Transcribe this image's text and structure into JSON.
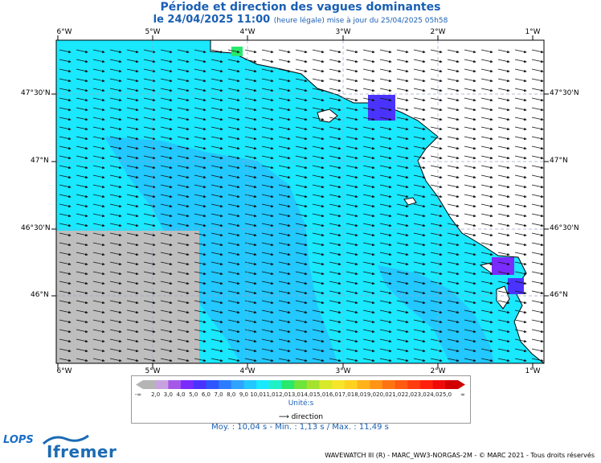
{
  "title": "Période et direction des vagues dominantes",
  "subtitle_date": "le 24/04/2025 11:00",
  "subtitle_note": "(heure légale) mise à jour du 25/04/2025 05h58",
  "lon_labels": [
    "6°W",
    "5°W",
    "4°W",
    "3°W",
    "2°W",
    "1°W"
  ],
  "lat_labels": [
    "47°30'N",
    "47°N",
    "46°30'N",
    "46°N"
  ],
  "legend": {
    "ticks": [
      "-∞",
      "2,0",
      "3,0",
      "4,0",
      "5,0",
      "6,0",
      "7,0",
      "8,0",
      "9,0",
      "10,0",
      "11,0",
      "12,0",
      "13,0",
      "14,0",
      "15,0",
      "16,0",
      "17,0",
      "18,0",
      "19,0",
      "20,0",
      "21,0",
      "22,0",
      "23,0",
      "24,0",
      "25,0",
      "∞"
    ],
    "colors": [
      "#b5b5b5",
      "#c8a2e0",
      "#a657e8",
      "#7a2bff",
      "#4a33ff",
      "#2f55ff",
      "#2b7cff",
      "#2ea3ff",
      "#22c8ff",
      "#19e8ff",
      "#1ef0c8",
      "#28e86e",
      "#6fe43a",
      "#a5e22e",
      "#d8e92b",
      "#f6e52a",
      "#ffd21f",
      "#ffb319",
      "#ff9416",
      "#ff7412",
      "#ff5a10",
      "#ff3c0e",
      "#ff200c",
      "#f00b0b",
      "#d00000"
    ],
    "unit": "Unité:s",
    "direction_label": "direction"
  },
  "stats": "Moy. : 10,04 s  -  Min. : 1,13 s / Max. : 11,49 s",
  "credit": "WAVEWATCH III (R) - MARC_WW3-NORGAS-2M - © MARC 2021 - Tous droits réservés",
  "logos": {
    "lops": "LOPS",
    "ifremer": "Ifremer"
  },
  "colors": {
    "sea_main": "#19e8ff",
    "sea_deep": "#22c8ff",
    "land": "#ffffff",
    "nodata": "#bebebe",
    "title": "#1a5fb4"
  }
}
